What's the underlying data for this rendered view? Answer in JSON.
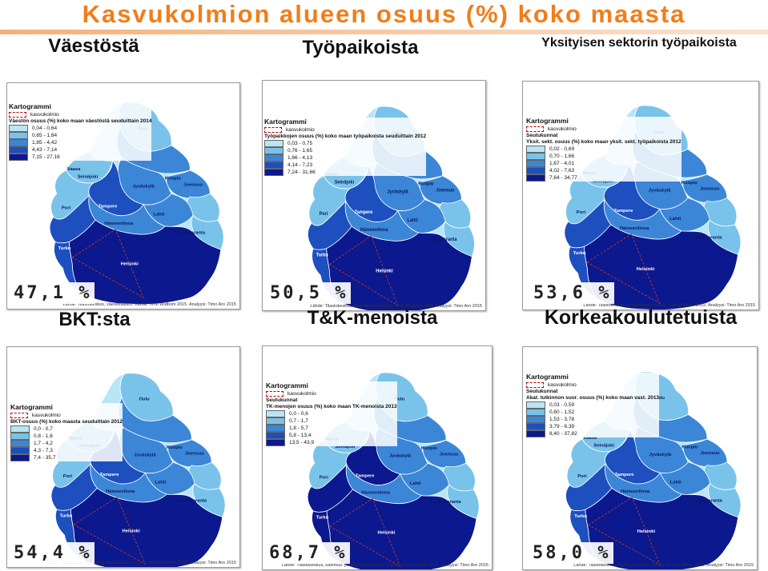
{
  "title": "Kasvukolmion alueen osuus (%) koko maasta",
  "colors": {
    "title": "#f07e1a",
    "class1": "#b9e5f4",
    "class2": "#79c3ea",
    "class3": "#3b86d6",
    "class4": "#1d4fbf",
    "class5": "#0c188e",
    "growth_triangle": "#c0392b"
  },
  "cities": [
    "Oulu",
    "Vaasa",
    "Seinäjoki",
    "Kuopio",
    "Joensuu",
    "Jyväskylä",
    "Tampere",
    "Pori",
    "Lahti",
    "Hämeenlinna",
    "Lappeenranta",
    "Turku",
    "Helsinki"
  ],
  "panels": [
    {
      "heading": "Väestöstä",
      "percentage": "47,1 %",
      "legend_title": "Kartogrammi",
      "growth_label": "kasvukolmio",
      "subtitle": "",
      "measure": "Väestön osuus (%) koko maan väestöstä seuduittain 2014",
      "classes": [
        "0,04 - 0,64",
        "0,65 - 1,84",
        "1,85 - 4,42",
        "4,43 - 7,14",
        "7,15 - 27,16"
      ],
      "source": "Lähde: Tilastokeskus, väestötilastot. Kartta: Timo Widbom 2015. Analyysi: Timo Aro 2015"
    },
    {
      "heading": "Työpaikoista",
      "percentage": "50,5 %",
      "legend_title": "Kartogrammi",
      "growth_label": "kasvukolmio",
      "subtitle": "",
      "measure": "Työpaikkojen osuus (%) koko maan työpaikoista seuduittain 2012",
      "classes": [
        "0,03 - 0,75",
        "0,76 - 1,65",
        "1,66 - 4,13",
        "4,14 - 7,23",
        "7,24 - 31,66"
      ],
      "source": "Lähde: Tilastokeskus, työssäkäynti. Kartta: Timo Widbom 2015. Analyysi: Timo Aro 2015"
    },
    {
      "heading": "Yksityisen sektorin työpaikoista",
      "percentage": "53,6 %",
      "legend_title": "Kartogrammi",
      "growth_label": "kasvukolmio",
      "subtitle": "Seutukunnat",
      "measure": "Yksit. sekt. osuus (%) koko maan yksit. sekt. työpaikoista 2012",
      "classes": [
        "0,02 - 0,69",
        "0,70 - 1,66",
        "1,67 - 4,01",
        "4,02 - 7,63",
        "7,64 - 34,77"
      ],
      "source": "Lähde: Tilastokeskus, työssäkäynti. Kartta: Timo Widbom 2015. Analyysi: Timo Aro 2015"
    },
    {
      "heading": "BKT:sta",
      "percentage": "54,4 %",
      "legend_title": "Kartogrammi",
      "growth_label": "kasvukolmio",
      "subtitle": "",
      "measure": "BKT-osuus (%) koko maasta seuduittain 2012",
      "classes": [
        "0,0 - 0,7",
        "0,8 - 1,6",
        "1,7 - 4,2",
        "4,3 - 7,3",
        "7,4 - 35,7"
      ],
      "source": "Lähde: Tilastokeskus, alue- ja kansantalous. Kartta: Timo Widbom 2015. Analyysi: Timo Aro 2015"
    },
    {
      "heading": "T&K-menoista",
      "percentage": "68,7 %",
      "legend_title": "Kartogrammi",
      "growth_label": "kasvukolmio",
      "subtitle": "Seutukunnat",
      "measure": "TK-menojen osuus (%) koko maan TK-menoista 2013",
      "classes": [
        "0,0 - 0,6",
        "0,7 - 1,7",
        "1,8 - 5,7",
        "5,8 - 13,4",
        "13,5 - 43,9"
      ],
      "source": "Lähde: Tilastokeskus, tutkimus- ja kehittämistoiminta. Kartta: Timo Widbom 2015. Analyysi: Timo Aro 2015"
    },
    {
      "heading": "Korkeakoulutetuista",
      "percentage": "58,0 %",
      "legend_title": "Kartogrammi",
      "growth_label": "kasvukolmio",
      "subtitle": "Seutukunnat",
      "measure": "Akat. tutkinnon suor. osuus (%) koko maan vast. 2013",
      "classes": [
        "0,03 - 0,59",
        "0,60 - 1,52",
        "1,53 - 3,78",
        "3,79 - 8,39",
        "8,40 - 37,82"
      ],
      "source": "Lähde: Tilastokeskus, koulutusrakenne. Kartta: Timo Widbom 2015. Analyysi: Timo Aro 2015"
    }
  ]
}
